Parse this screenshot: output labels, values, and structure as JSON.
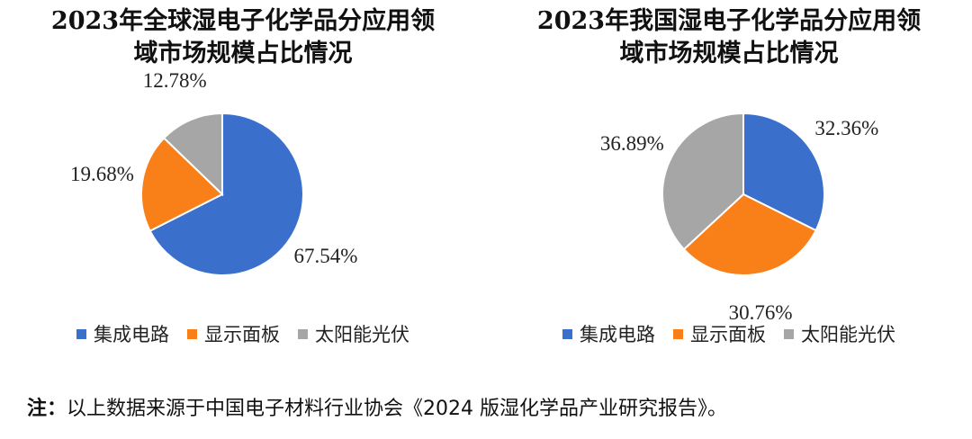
{
  "chart_data": [
    {
      "type": "pie",
      "title": "2023年全球湿电子化学品分应用领域市场规模占比情况",
      "title_lines": [
        "2023年全球湿电子化学品分应用领",
        "域市场规模占比情况"
      ],
      "categories": [
        "集成电路",
        "显示面板",
        "太阳能光伏"
      ],
      "values": [
        67.54,
        19.68,
        12.78
      ],
      "labels": [
        "67.54%",
        "19.68%",
        "12.78%"
      ],
      "colors": [
        "#3A70CC",
        "#F97F18",
        "#A6A6A6"
      ],
      "legend_position": "bottom"
    },
    {
      "type": "pie",
      "title": "2023年我国湿电子化学品分应用领域市场规模占比情况",
      "title_lines": [
        "2023年我国湿电子化学品分应用领",
        "域市场规模占比情况"
      ],
      "categories": [
        "集成电路",
        "显示面板",
        "太阳能光伏"
      ],
      "values": [
        32.36,
        30.76,
        36.89
      ],
      "labels": [
        "32.36%",
        "30.76%",
        "36.89%"
      ],
      "colors": [
        "#3A70CC",
        "#F97F18",
        "#A6A6A6"
      ],
      "legend_position": "bottom"
    }
  ],
  "note": {
    "label": "注：",
    "text": "以上数据来源于中国电子材料行业协会《2024 版湿化学品产业研究报告》。"
  }
}
